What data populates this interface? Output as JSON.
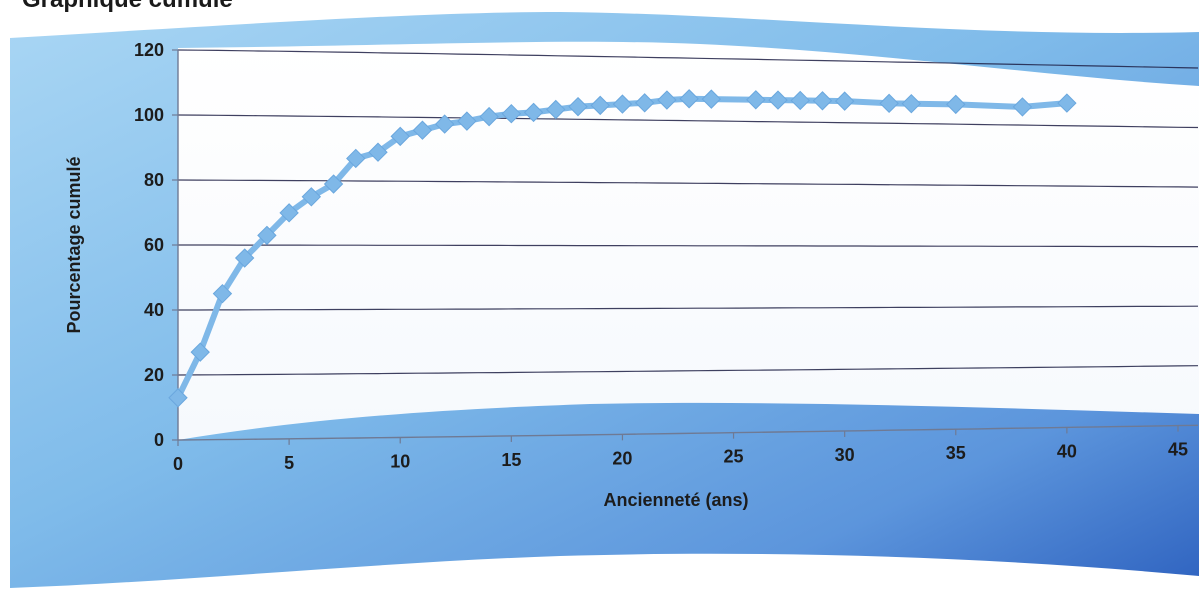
{
  "heading": "Graphique cumulé",
  "chart_data": {
    "type": "line",
    "title": "",
    "xlabel": "Ancienneté (ans)",
    "ylabel": "Pourcentage cumulé",
    "xlim": [
      0,
      45
    ],
    "ylim": [
      0,
      120
    ],
    "x_ticks": [
      0,
      5,
      10,
      15,
      20,
      25,
      30,
      35,
      40,
      45
    ],
    "y_ticks": [
      0,
      20,
      40,
      60,
      80,
      100,
      120
    ],
    "grid": true,
    "marker": "diamond",
    "colors": {
      "series": "#7fb8e8",
      "frame_light": "#8fc7ef",
      "frame_dark": "#2f63c0",
      "plot_bg": "#ffffff",
      "grid": "#1d1f44"
    },
    "series": [
      {
        "x": [
          0,
          1,
          2,
          3,
          4,
          5,
          6,
          7,
          8,
          9,
          10,
          11,
          12,
          13,
          14,
          15,
          16,
          17,
          18,
          19,
          20,
          21,
          22,
          23,
          24,
          26,
          27,
          28,
          29,
          30,
          32,
          33,
          35,
          38,
          40
        ],
        "y": [
          13,
          27,
          45,
          56,
          63,
          70,
          75,
          79,
          87,
          89,
          94,
          96,
          98,
          99,
          100.5,
          101.5,
          102,
          103,
          104,
          104.5,
          105,
          105.5,
          106.5,
          107,
          107,
          107,
          107,
          107,
          107,
          107,
          106.5,
          106.5,
          106.5,
          106,
          107.5
        ]
      }
    ]
  }
}
